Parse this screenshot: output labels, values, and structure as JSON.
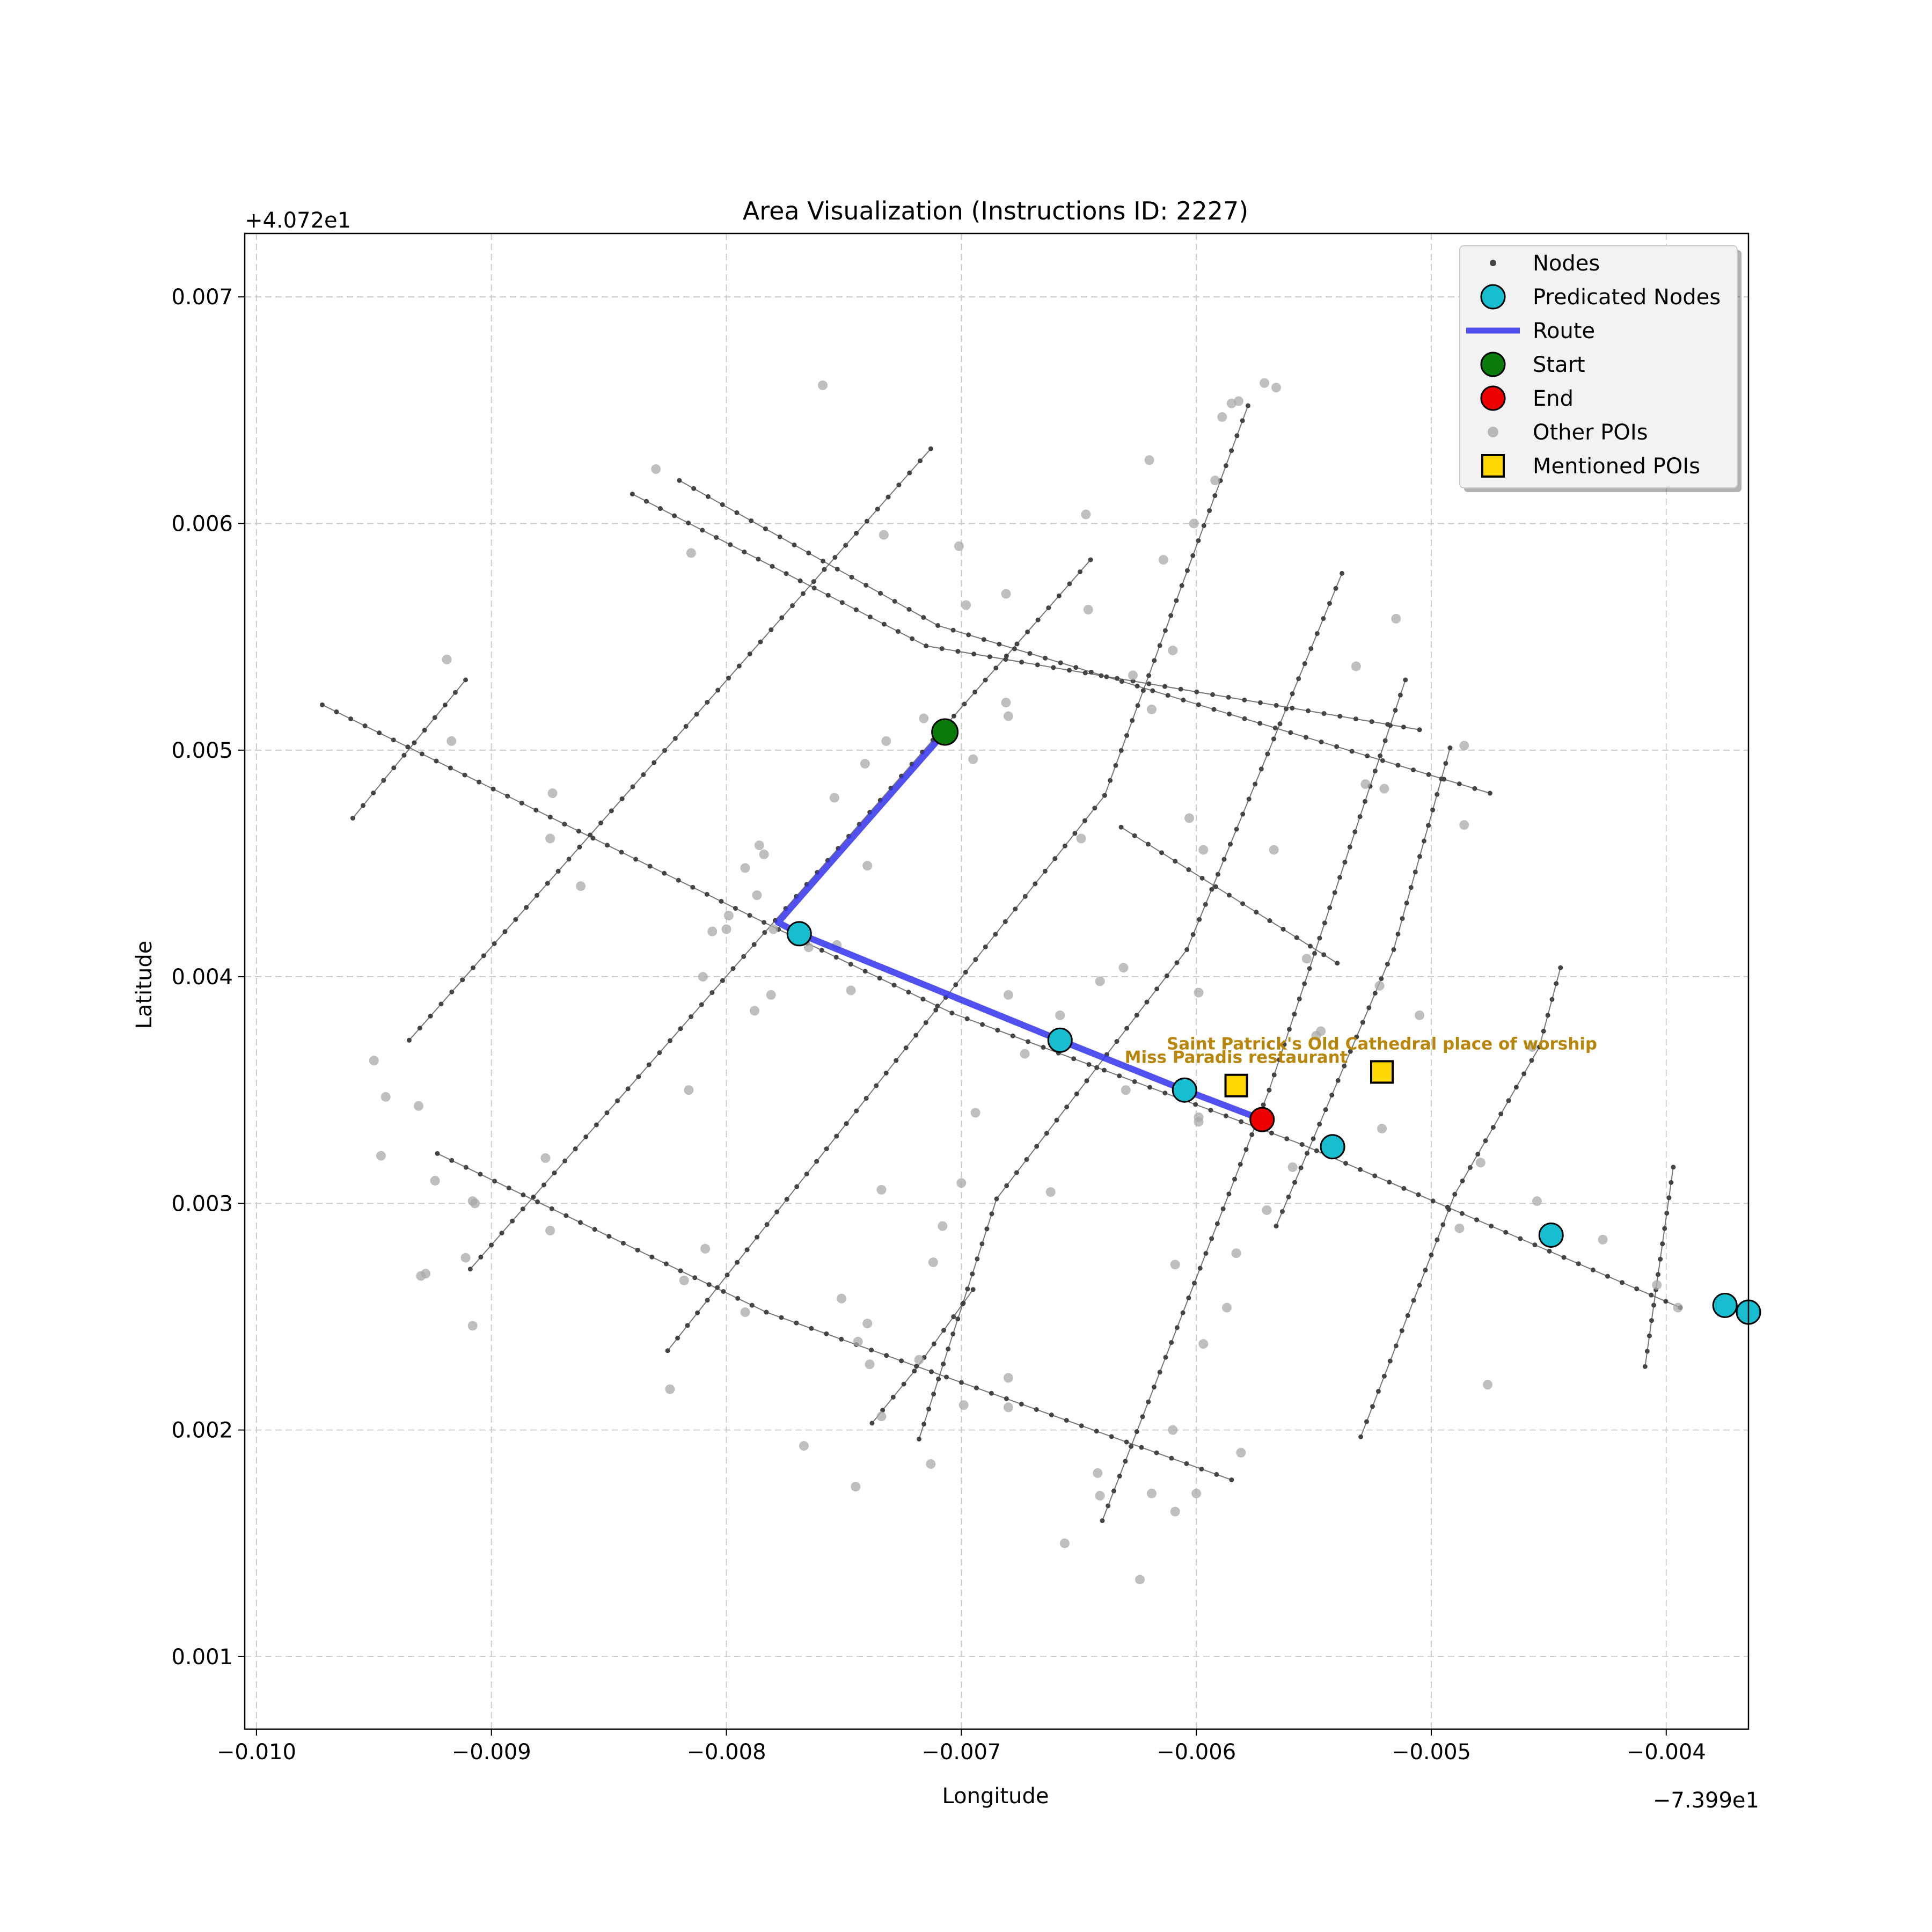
{
  "title": "Area Visualization (Instructions ID: 2227)",
  "xlabel": "Longitude",
  "ylabel": "Latitude",
  "x_offset_label": "−7.399e1",
  "y_offset_label": "+4.072e1",
  "legend": {
    "nodes": "Nodes",
    "predicated": "Predicated Nodes",
    "route": "Route",
    "start": "Start",
    "end": "End",
    "other_pois": "Other POIs",
    "mentioned_pois": "Mentioned POIs"
  },
  "colors": {
    "node": "#444444",
    "street": "#555555",
    "predicated": "#17BECF",
    "route": "#3333EE",
    "start": "#0A7A0A",
    "end": "#EE0000",
    "poi": "#A9A9A9",
    "mentioned": "#FFD700",
    "mentioned_label": "#B8860B",
    "grid": "#CCCCCC"
  },
  "chart_data": {
    "type": "scatter",
    "xlim": [
      -0.01005,
      -0.00365
    ],
    "ylim": [
      0.00068,
      0.00728
    ],
    "x_ticks": [
      {
        "v": -0.01,
        "label": "−0.010"
      },
      {
        "v": -0.009,
        "label": "−0.009"
      },
      {
        "v": -0.008,
        "label": "−0.008"
      },
      {
        "v": -0.007,
        "label": "−0.007"
      },
      {
        "v": -0.006,
        "label": "−0.006"
      },
      {
        "v": -0.005,
        "label": "−0.005"
      },
      {
        "v": -0.004,
        "label": "−0.004"
      }
    ],
    "y_ticks": [
      {
        "v": 0.001,
        "label": "0.001"
      },
      {
        "v": 0.002,
        "label": "0.002"
      },
      {
        "v": 0.003,
        "label": "0.003"
      },
      {
        "v": 0.004,
        "label": "0.004"
      },
      {
        "v": 0.005,
        "label": "0.005"
      },
      {
        "v": 0.006,
        "label": "0.006"
      },
      {
        "v": 0.007,
        "label": "0.007"
      }
    ],
    "grid": true,
    "legend_position": "top-right",
    "streets": [
      [
        [
          -0.00972,
          0.0052
        ],
        [
          -0.00784,
          0.00424
        ],
        [
          -0.00704,
          0.00384
        ],
        [
          -0.00555,
          0.00326
        ],
        [
          -0.00394,
          0.00254
        ]
      ],
      [
        [
          -0.00923,
          0.00322
        ],
        [
          -0.00783,
          0.00252
        ],
        [
          -0.00585,
          0.00178
        ]
      ],
      [
        [
          -0.0084,
          0.00613
        ],
        [
          -0.00715,
          0.00546
        ],
        [
          -0.00505,
          0.00509
        ]
      ],
      [
        [
          -0.0082,
          0.00619
        ],
        [
          -0.0071,
          0.00555
        ],
        [
          -0.00475,
          0.00481
        ]
      ],
      [
        [
          -0.00632,
          0.00466
        ],
        [
          -0.0054,
          0.00406
        ]
      ],
      [
        [
          -0.00959,
          0.0047
        ],
        [
          -0.00911,
          0.00531
        ]
      ],
      [
        [
          -0.00935,
          0.00372
        ],
        [
          -0.00713,
          0.00633
        ]
      ],
      [
        [
          -0.00909,
          0.00271
        ],
        [
          -0.00645,
          0.00584
        ]
      ],
      [
        [
          -0.00825,
          0.00235
        ],
        [
          -0.00639,
          0.0048
        ],
        [
          -0.00578,
          0.00652
        ]
      ],
      [
        [
          -0.00738,
          0.00203
        ],
        [
          -0.0072,
          0.00226
        ],
        [
          -0.00695,
          0.00262
        ]
      ],
      [
        [
          -0.00718,
          0.00196
        ],
        [
          -0.00685,
          0.00302
        ],
        [
          -0.00604,
          0.00412
        ],
        [
          -0.00538,
          0.00578
        ]
      ],
      [
        [
          -0.0064,
          0.0016
        ],
        [
          -0.00569,
          0.0035
        ],
        [
          -0.00511,
          0.00531
        ]
      ],
      [
        [
          -0.0053,
          0.00197
        ],
        [
          -0.0049,
          0.00304
        ],
        [
          -0.00454,
          0.00369
        ],
        [
          -0.00445,
          0.00404
        ]
      ],
      [
        [
          -0.00409,
          0.00228
        ],
        [
          -0.00397,
          0.00316
        ]
      ],
      [
        [
          -0.00566,
          0.0029
        ],
        [
          -0.00516,
          0.00412
        ],
        [
          -0.00492,
          0.00501
        ]
      ]
    ],
    "route": [
      [
        -0.00707,
        0.00508
      ],
      [
        -0.00778,
        0.00424
      ],
      [
        -0.00769,
        0.00419
      ],
      [
        -0.00658,
        0.00372
      ],
      [
        -0.00605,
        0.0035
      ],
      [
        -0.00572,
        0.00337
      ]
    ],
    "start": {
      "x": -0.00707,
      "y": 0.00508
    },
    "end": {
      "x": -0.00572,
      "y": 0.00337
    },
    "predicated_nodes": [
      {
        "x": -0.00769,
        "y": 0.00419
      },
      {
        "x": -0.00658,
        "y": 0.00372
      },
      {
        "x": -0.00605,
        "y": 0.0035
      },
      {
        "x": -0.00542,
        "y": 0.00325
      },
      {
        "x": -0.00449,
        "y": 0.00286
      },
      {
        "x": -0.00375,
        "y": 0.00255
      },
      {
        "x": -0.00365,
        "y": 0.00252
      }
    ],
    "mentioned_pois": [
      {
        "x": -0.00583,
        "y": 0.00352,
        "label": "Miss Paradis restaurant"
      },
      {
        "x": -0.00521,
        "y": 0.00358,
        "label": "Saint Patrick's Old Cathedral place of worship"
      }
    ],
    "other_pois": [
      [
        -0.00759,
        0.00661
      ],
      [
        -0.00571,
        0.00662
      ],
      [
        -0.00566,
        0.0066
      ],
      [
        -0.00582,
        0.00654
      ],
      [
        -0.00585,
        0.00653
      ],
      [
        -0.00589,
        0.00647
      ],
      [
        -0.0083,
        0.00624
      ],
      [
        -0.0062,
        0.00628
      ],
      [
        -0.00592,
        0.00619
      ],
      [
        -0.00815,
        0.00587
      ],
      [
        -0.00733,
        0.00595
      ],
      [
        -0.00701,
        0.0059
      ],
      [
        -0.00647,
        0.00604
      ],
      [
        -0.00601,
        0.006
      ],
      [
        -0.00614,
        0.00584
      ],
      [
        -0.00681,
        0.00569
      ],
      [
        -0.00698,
        0.00564
      ],
      [
        -0.00646,
        0.00562
      ],
      [
        -0.00515,
        0.00558
      ],
      [
        -0.00919,
        0.0054
      ],
      [
        -0.00532,
        0.00537
      ],
      [
        -0.00627,
        0.00533
      ],
      [
        -0.0061,
        0.00544
      ],
      [
        -0.00681,
        0.00521
      ],
      [
        -0.0068,
        0.00515
      ],
      [
        -0.00619,
        0.00518
      ],
      [
        -0.00716,
        0.00514
      ],
      [
        -0.00917,
        0.00504
      ],
      [
        -0.00732,
        0.00504
      ],
      [
        -0.00741,
        0.00494
      ],
      [
        -0.00695,
        0.00496
      ],
      [
        -0.00528,
        0.00485
      ],
      [
        -0.0052,
        0.00483
      ],
      [
        -0.00874,
        0.00481
      ],
      [
        -0.00486,
        0.00502
      ],
      [
        -0.00875,
        0.00461
      ],
      [
        -0.00862,
        0.0044
      ],
      [
        -0.00754,
        0.00479
      ],
      [
        -0.00649,
        0.00461
      ],
      [
        -0.00603,
        0.0047
      ],
      [
        -0.00486,
        0.00467
      ],
      [
        -0.00786,
        0.00458
      ],
      [
        -0.00784,
        0.00454
      ],
      [
        -0.00597,
        0.00456
      ],
      [
        -0.00567,
        0.00456
      ],
      [
        -0.00792,
        0.00448
      ],
      [
        -0.0074,
        0.00449
      ],
      [
        -0.00787,
        0.00436
      ],
      [
        -0.00799,
        0.00427
      ],
      [
        -0.008,
        0.00421
      ],
      [
        -0.00806,
        0.0042
      ],
      [
        -0.0078,
        0.00421
      ],
      [
        -0.00765,
        0.00413
      ],
      [
        -0.00753,
        0.00414
      ],
      [
        -0.0081,
        0.004
      ],
      [
        -0.00781,
        0.00392
      ],
      [
        -0.00747,
        0.00394
      ],
      [
        -0.00631,
        0.00404
      ],
      [
        -0.0068,
        0.00392
      ],
      [
        -0.00641,
        0.00398
      ],
      [
        -0.00553,
        0.00408
      ],
      [
        -0.00788,
        0.00385
      ],
      [
        -0.00599,
        0.00393
      ],
      [
        -0.00658,
        0.00383
      ],
      [
        -0.00522,
        0.00396
      ],
      [
        -0.00505,
        0.00383
      ],
      [
        -0.00673,
        0.00366
      ],
      [
        -0.00547,
        0.00376
      ],
      [
        -0.00549,
        0.00374
      ],
      [
        -0.00457,
        0.00369
      ],
      [
        -0.0095,
        0.00363
      ],
      [
        -0.00945,
        0.00347
      ],
      [
        -0.00931,
        0.00343
      ],
      [
        -0.00816,
        0.0035
      ],
      [
        -0.0063,
        0.0035
      ],
      [
        -0.00694,
        0.0034
      ],
      [
        -0.00599,
        0.00338
      ],
      [
        -0.00599,
        0.00336
      ],
      [
        -0.00521,
        0.00333
      ],
      [
        -0.00947,
        0.00321
      ],
      [
        -0.00877,
        0.0032
      ],
      [
        -0.00559,
        0.00316
      ],
      [
        -0.00479,
        0.00318
      ],
      [
        -0.00924,
        0.0031
      ],
      [
        -0.007,
        0.00309
      ],
      [
        -0.00734,
        0.00306
      ],
      [
        -0.00662,
        0.00305
      ],
      [
        -0.00907,
        0.003
      ],
      [
        -0.00908,
        0.00301
      ],
      [
        -0.00455,
        0.00301
      ],
      [
        -0.0057,
        0.00297
      ],
      [
        -0.00488,
        0.00289
      ],
      [
        -0.00875,
        0.00288
      ],
      [
        -0.00708,
        0.0029
      ],
      [
        -0.00427,
        0.00284
      ],
      [
        -0.00809,
        0.0028
      ],
      [
        -0.00583,
        0.00278
      ],
      [
        -0.00911,
        0.00276
      ],
      [
        -0.00712,
        0.00274
      ],
      [
        -0.00609,
        0.00273
      ],
      [
        -0.00928,
        0.00269
      ],
      [
        -0.0093,
        0.00268
      ],
      [
        -0.00818,
        0.00266
      ],
      [
        -0.00404,
        0.00264
      ],
      [
        -0.00751,
        0.00258
      ],
      [
        -0.00395,
        0.00254
      ],
      [
        -0.00792,
        0.00252
      ],
      [
        -0.00587,
        0.00254
      ],
      [
        -0.0074,
        0.00247
      ],
      [
        -0.00908,
        0.00246
      ],
      [
        -0.00744,
        0.00239
      ],
      [
        -0.00597,
        0.00238
      ],
      [
        -0.00739,
        0.00229
      ],
      [
        -0.00718,
        0.00231
      ],
      [
        -0.0068,
        0.00223
      ],
      [
        -0.00476,
        0.0022
      ],
      [
        -0.00824,
        0.00218
      ],
      [
        -0.00699,
        0.00211
      ],
      [
        -0.0068,
        0.0021
      ],
      [
        -0.00734,
        0.00206
      ],
      [
        -0.0061,
        0.002
      ],
      [
        -0.00767,
        0.00193
      ],
      [
        -0.00581,
        0.0019
      ],
      [
        -0.00713,
        0.00185
      ],
      [
        -0.00642,
        0.00181
      ],
      [
        -0.00745,
        0.00175
      ],
      [
        -0.00641,
        0.00171
      ],
      [
        -0.00619,
        0.00172
      ],
      [
        -0.006,
        0.00172
      ],
      [
        -0.00609,
        0.00164
      ],
      [
        -0.00656,
        0.0015
      ],
      [
        -0.00624,
        0.00134
      ]
    ]
  }
}
